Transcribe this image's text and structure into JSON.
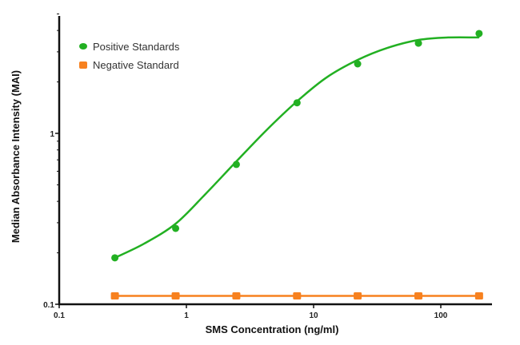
{
  "chart_data": {
    "type": "scatter",
    "title": "",
    "xlabel": "SMS Concentration (ng/ml)",
    "ylabel": "Median Absorbance Intensity (MAI)",
    "xscale": "log",
    "yscale": "log",
    "xlim": [
      0.1,
      250
    ],
    "ylim": [
      0.1,
      5
    ],
    "x_ticks": [
      {
        "value": 0.1,
        "label": "0.1"
      },
      {
        "value": 1,
        "label": "1"
      },
      {
        "value": 10,
        "label": "10"
      },
      {
        "value": 100,
        "label": "100"
      }
    ],
    "y_ticks": [
      {
        "value": 0.1,
        "label": "0.1"
      },
      {
        "value": 1,
        "label": "1"
      }
    ],
    "y_minor_ticks": [
      0.2,
      0.3,
      0.4,
      0.5,
      0.6,
      0.7,
      0.8,
      0.9,
      2,
      3,
      4,
      5
    ],
    "grid": false,
    "legend_position": "upper left",
    "series": [
      {
        "name": "Positive Standards",
        "color": "#22b022",
        "marker": "circle",
        "x": [
          0.274,
          0.823,
          2.47,
          7.41,
          22.2,
          66.7,
          200
        ],
        "y": [
          0.187,
          0.278,
          0.658,
          1.51,
          2.55,
          3.37,
          3.84
        ],
        "fit_curve": {
          "type": "sigmoidal (4PL)",
          "x": [
            0.274,
            0.464,
            0.823,
            1.41,
            2.47,
            4.24,
            7.41,
            12.6,
            22.2,
            37.9,
            66.7,
            114,
            200
          ],
          "y": [
            0.187,
            0.226,
            0.296,
            0.441,
            0.685,
            1.04,
            1.54,
            2.12,
            2.69,
            3.16,
            3.52,
            3.64,
            3.64
          ]
        }
      },
      {
        "name": "Negative Standard",
        "color": "#f7811f",
        "marker": "square",
        "x": [
          0.274,
          0.823,
          2.47,
          7.41,
          22.2,
          66.7,
          200
        ],
        "y": [
          0.112,
          0.112,
          0.112,
          0.112,
          0.112,
          0.112,
          0.112
        ],
        "connect": true
      }
    ]
  }
}
